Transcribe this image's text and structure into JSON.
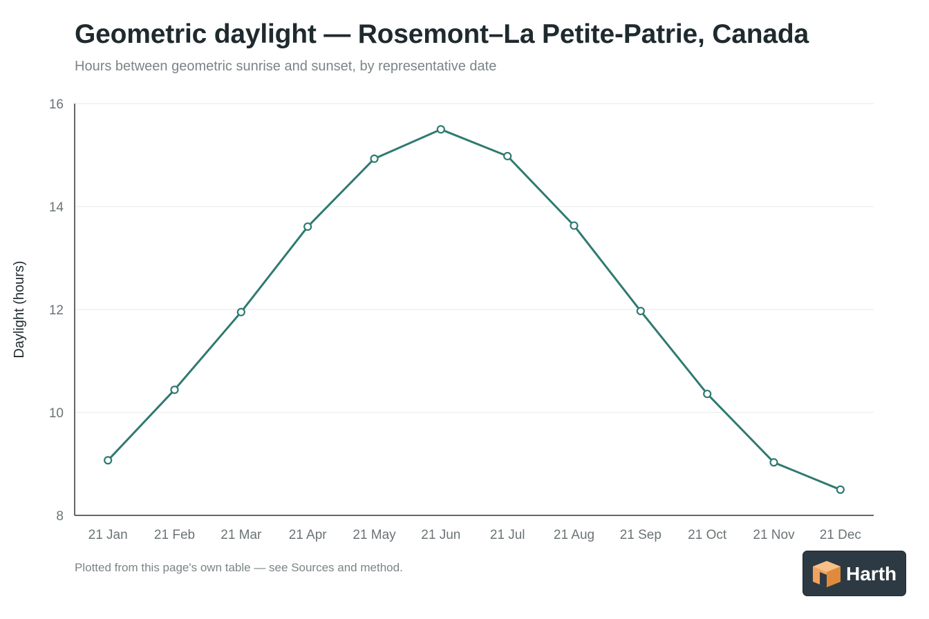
{
  "header": {
    "title": "Geometric daylight — Rosemont–La Petite-Patrie, Canada",
    "subtitle": "Hours between geometric sunrise and sunset, by representative date"
  },
  "footer": {
    "note": "Plotted from this page's own table — see Sources and method."
  },
  "logo": {
    "text": "Harth",
    "icon": "cube-logo-icon"
  },
  "colors": {
    "line": "#2f7a70",
    "marker_fill": "#ffffff",
    "grid": "#e6e9ea",
    "axis": "#333333",
    "tick_text": "#6b7375",
    "logo_bg": "#2e3a43",
    "logo_orange": "#f0a35e"
  },
  "chart_data": {
    "type": "line",
    "title": "Geometric daylight — Rosemont–La Petite-Patrie, Canada",
    "subtitle": "Hours between geometric sunrise and sunset, by representative date",
    "xlabel": "",
    "ylabel": "Daylight (hours)",
    "ylim": [
      8,
      16
    ],
    "yticks": [
      8,
      10,
      12,
      14,
      16
    ],
    "grid": true,
    "legend": "none",
    "categories": [
      "21 Jan",
      "21 Feb",
      "21 Mar",
      "21 Apr",
      "21 May",
      "21 Jun",
      "21 Jul",
      "21 Aug",
      "21 Sep",
      "21 Oct",
      "21 Nov",
      "21 Dec"
    ],
    "series": [
      {
        "values": [
          9.07,
          10.44,
          11.95,
          13.61,
          14.93,
          15.5,
          14.98,
          13.63,
          11.97,
          10.36,
          9.03,
          8.5
        ]
      }
    ]
  }
}
